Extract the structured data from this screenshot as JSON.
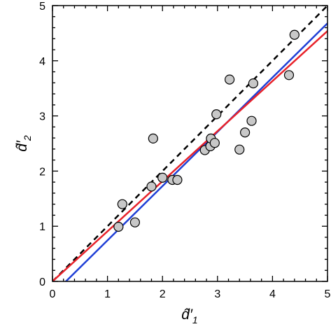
{
  "chart_data": {
    "type": "scatter",
    "title": "",
    "xlabel": {
      "base": "d̂′",
      "sub": "1"
    },
    "ylabel": {
      "base": "d̂′",
      "sub": "2"
    },
    "xlim": [
      0,
      5
    ],
    "ylim": [
      0,
      5
    ],
    "x_ticks": [
      "0",
      "1",
      "2",
      "3",
      "4",
      "5"
    ],
    "y_ticks": [
      "0",
      "1",
      "2",
      "3",
      "4",
      "5"
    ],
    "minor_ticks": true,
    "grid": false,
    "legend": "none",
    "points": [
      {
        "x": 1.2,
        "y": 0.99
      },
      {
        "x": 1.27,
        "y": 1.4
      },
      {
        "x": 1.5,
        "y": 1.07
      },
      {
        "x": 1.8,
        "y": 1.72
      },
      {
        "x": 1.83,
        "y": 2.59
      },
      {
        "x": 2.0,
        "y": 1.88
      },
      {
        "x": 2.18,
        "y": 1.84
      },
      {
        "x": 2.27,
        "y": 1.84
      },
      {
        "x": 2.77,
        "y": 2.38
      },
      {
        "x": 2.87,
        "y": 2.45
      },
      {
        "x": 2.88,
        "y": 2.59
      },
      {
        "x": 2.95,
        "y": 2.51
      },
      {
        "x": 2.98,
        "y": 3.03
      },
      {
        "x": 3.22,
        "y": 3.66
      },
      {
        "x": 3.4,
        "y": 2.39
      },
      {
        "x": 3.5,
        "y": 2.7
      },
      {
        "x": 3.62,
        "y": 2.91
      },
      {
        "x": 3.65,
        "y": 3.59
      },
      {
        "x": 4.3,
        "y": 3.74
      },
      {
        "x": 4.4,
        "y": 4.47
      }
    ],
    "lines": [
      {
        "x": [
          0,
          5
        ],
        "y": [
          0,
          5
        ],
        "color": "#000000",
        "style": "dashed"
      },
      {
        "x": [
          0,
          5
        ],
        "y": [
          -0.24,
          4.68
        ],
        "color": "#1f3fd6",
        "style": "solid"
      },
      {
        "x": [
          0,
          5
        ],
        "y": [
          0.0,
          4.54
        ],
        "color": "#e8222a",
        "style": "solid"
      }
    ],
    "marker": {
      "fill": "#c8c8c8",
      "stroke": "#000000"
    }
  }
}
